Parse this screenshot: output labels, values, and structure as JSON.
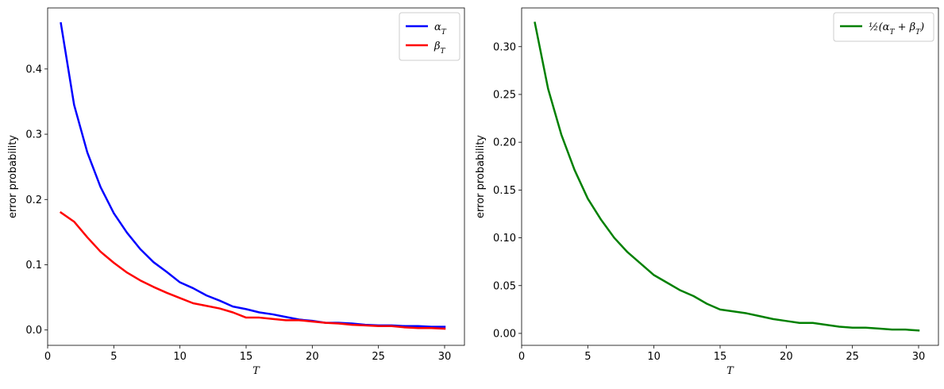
{
  "chart_data": [
    {
      "type": "line",
      "xlabel": "T",
      "ylabel": "error probability",
      "xlim": [
        0,
        31.5
      ],
      "ylim": [
        -0.0235,
        0.4935
      ],
      "xticks": [
        0,
        5,
        10,
        15,
        20,
        25,
        30
      ],
      "xtick_labels": [
        "0",
        "5",
        "10",
        "15",
        "20",
        "25",
        "30"
      ],
      "yticks": [
        0.0,
        0.1,
        0.2,
        0.3,
        0.4
      ],
      "ytick_labels": [
        "0.0",
        "0.1",
        "0.2",
        "0.3",
        "0.4"
      ],
      "grid": false,
      "legend_position": "top-right",
      "x": [
        1,
        2,
        3,
        4,
        5,
        6,
        7,
        8,
        9,
        10,
        11,
        12,
        13,
        14,
        15,
        16,
        17,
        18,
        19,
        20,
        21,
        22,
        23,
        24,
        25,
        26,
        27,
        28,
        29,
        30
      ],
      "series": [
        {
          "name": "α_T",
          "color": "#0000ff",
          "values": [
            0.47,
            0.345,
            0.272,
            0.219,
            0.179,
            0.149,
            0.124,
            0.104,
            0.089,
            0.073,
            0.064,
            0.053,
            0.045,
            0.036,
            0.032,
            0.027,
            0.024,
            0.02,
            0.016,
            0.014,
            0.011,
            0.011,
            0.01,
            0.008,
            0.007,
            0.007,
            0.006,
            0.006,
            0.005,
            0.005
          ]
        },
        {
          "name": "β_T",
          "color": "#ff0000",
          "values": [
            0.18,
            0.166,
            0.142,
            0.12,
            0.103,
            0.088,
            0.076,
            0.066,
            0.057,
            0.049,
            0.041,
            0.037,
            0.033,
            0.027,
            0.019,
            0.019,
            0.017,
            0.015,
            0.015,
            0.013,
            0.011,
            0.01,
            0.008,
            0.007,
            0.006,
            0.006,
            0.004,
            0.003,
            0.003,
            0.002
          ]
        }
      ]
    },
    {
      "type": "line",
      "xlabel": "T",
      "ylabel": "error probability",
      "xlim": [
        0,
        31.5
      ],
      "ylim": [
        -0.0125,
        0.3405
      ],
      "xticks": [
        0,
        5,
        10,
        15,
        20,
        25,
        30
      ],
      "xtick_labels": [
        "0",
        "5",
        "10",
        "15",
        "20",
        "25",
        "30"
      ],
      "yticks": [
        0.0,
        0.05,
        0.1,
        0.15,
        0.2,
        0.25,
        0.3
      ],
      "ytick_labels": [
        "0.00",
        "0.05",
        "0.10",
        "0.15",
        "0.20",
        "0.25",
        "0.30"
      ],
      "grid": false,
      "legend_position": "top-right",
      "x": [
        1,
        2,
        3,
        4,
        5,
        6,
        7,
        8,
        9,
        10,
        11,
        12,
        13,
        14,
        15,
        16,
        17,
        18,
        19,
        20,
        21,
        22,
        23,
        24,
        25,
        26,
        27,
        28,
        29,
        30
      ],
      "series": [
        {
          "name": "½(α_T + β_T)",
          "color": "#008000",
          "values": [
            0.325,
            0.256,
            0.208,
            0.171,
            0.141,
            0.119,
            0.1,
            0.085,
            0.073,
            0.061,
            0.053,
            0.045,
            0.039,
            0.031,
            0.025,
            0.023,
            0.021,
            0.018,
            0.015,
            0.013,
            0.011,
            0.011,
            0.009,
            0.007,
            0.006,
            0.006,
            0.005,
            0.004,
            0.004,
            0.003
          ]
        }
      ]
    }
  ]
}
